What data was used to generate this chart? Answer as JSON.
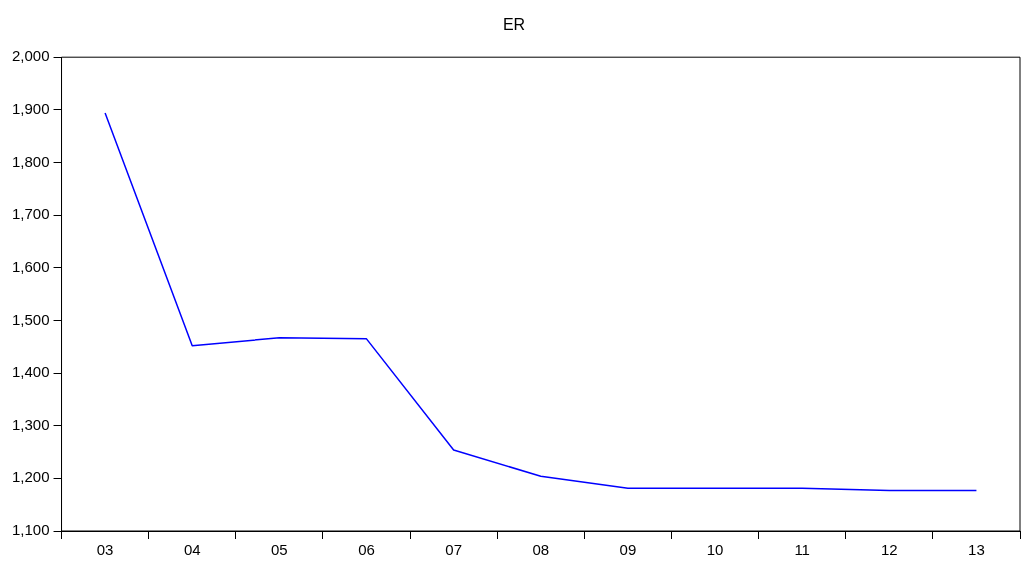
{
  "chart_data": {
    "type": "line",
    "title": "ER",
    "categories": [
      "03",
      "04",
      "05",
      "06",
      "07",
      "08",
      "09",
      "10",
      "11",
      "12",
      "13"
    ],
    "series": [
      {
        "color": "#0000ff",
        "values": [
          1894,
          1452,
          1467,
          1465,
          1254,
          1204,
          1181,
          1181,
          1181,
          1177,
          1177
        ]
      }
    ],
    "ylim": [
      1100,
      2000
    ],
    "yticks": [
      {
        "value": 1100,
        "label": "1,100"
      },
      {
        "value": 1200,
        "label": "1,200"
      },
      {
        "value": 1300,
        "label": "1,300"
      },
      {
        "value": 1400,
        "label": "1,400"
      },
      {
        "value": 1500,
        "label": "1,500"
      },
      {
        "value": 1600,
        "label": "1,600"
      },
      {
        "value": 1700,
        "label": "1,700"
      },
      {
        "value": 1800,
        "label": "1,800"
      },
      {
        "value": 1900,
        "label": "1,900"
      },
      {
        "value": 2000,
        "label": "2,000"
      }
    ],
    "grid": false,
    "legend": false,
    "marker": "none",
    "line_style": "solid"
  }
}
